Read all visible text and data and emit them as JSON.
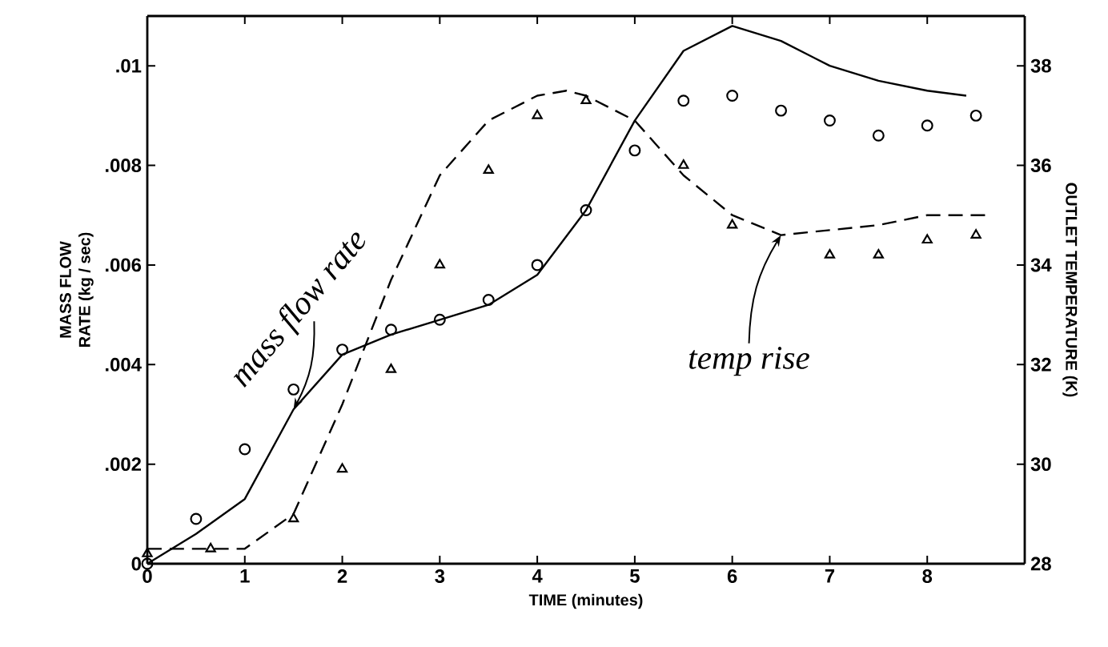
{
  "chart_data": {
    "type": "line",
    "xlabel": "TIME (minutes)",
    "ylabel": "MASS FLOW RATE (kg / sec)",
    "y2label": "OUTLET TEMPERATURE (K)",
    "xlim": [
      0,
      9
    ],
    "ylim": [
      0,
      0.011
    ],
    "y2lim": [
      28,
      39
    ],
    "xticks": [
      0,
      1,
      2,
      3,
      4,
      5,
      6,
      7,
      8
    ],
    "yticks": [
      0,
      {
        "value": 0.002,
        "label": ".002"
      },
      {
        "value": 0.004,
        "label": ".004"
      },
      {
        "value": 0.006,
        "label": ".006"
      },
      {
        "value": 0.008,
        "label": ".008"
      },
      {
        "value": 0.01,
        "label": ".01"
      }
    ],
    "y2ticks": [
      28,
      30,
      32,
      34,
      36,
      38
    ],
    "grid": false,
    "series": [
      {
        "type": "scatter",
        "marker": "circle",
        "color": "#000000",
        "x": [
          0,
          0.5,
          1,
          1.5,
          2,
          2.5,
          3,
          3.5,
          4,
          4.5,
          5,
          5.5,
          6,
          6.5,
          7,
          7.5,
          8,
          8.5
        ],
        "values": [
          0,
          0.0009,
          0.0023,
          0.0035,
          0.0043,
          0.0047,
          0.0049,
          0.0053,
          0.006,
          0.0071,
          0.0083,
          0.0093,
          0.0094,
          0.0091,
          0.0089,
          0.0086,
          0.0088,
          0.009
        ]
      },
      {
        "line_style": "solid",
        "color": "#000000",
        "x": [
          0,
          0.5,
          1,
          1.5,
          2,
          2.5,
          3,
          3.5,
          4,
          4.5,
          5,
          5.5,
          6,
          6.5,
          7,
          7.5,
          8,
          8.4
        ],
        "values": [
          0,
          0.0006,
          0.0013,
          0.0031,
          0.0042,
          0.0046,
          0.0049,
          0.0052,
          0.0058,
          0.0071,
          0.0089,
          0.0103,
          0.0108,
          0.0105,
          0.01,
          0.0097,
          0.0095,
          0.0094
        ]
      },
      {
        "type": "scatter",
        "marker": "triangle",
        "axis": "y2",
        "color": "#000000",
        "x": [
          0,
          0.65,
          1.5,
          2,
          2.5,
          3,
          3.5,
          4,
          4.5,
          5.5,
          6,
          7,
          7.5,
          8,
          8.5
        ],
        "values": [
          28.2,
          28.3,
          28.9,
          29.9,
          31.9,
          34,
          35.9,
          37,
          37.3,
          36,
          34.8,
          34.2,
          34.2,
          34.5,
          34.6
        ]
      },
      {
        "line_style": "dashed",
        "axis": "y2",
        "color": "#000000",
        "x": [
          0,
          1,
          1.5,
          2,
          2.5,
          3,
          3.5,
          4,
          4.3,
          4.5,
          5,
          5.5,
          6,
          6.5,
          7,
          7.5,
          8,
          8.6
        ],
        "values": [
          28.3,
          28.3,
          29,
          31.2,
          33.7,
          35.8,
          36.9,
          37.4,
          37.5,
          37.4,
          36.9,
          35.8,
          35,
          34.6,
          34.7,
          34.8,
          35,
          35
        ]
      }
    ],
    "annotations": [
      {
        "text": "mass flow rate",
        "x": 1.5,
        "y": 0.0031
      },
      {
        "text": "temp rise",
        "x": 6.5,
        "y": 0.0066
      }
    ]
  }
}
